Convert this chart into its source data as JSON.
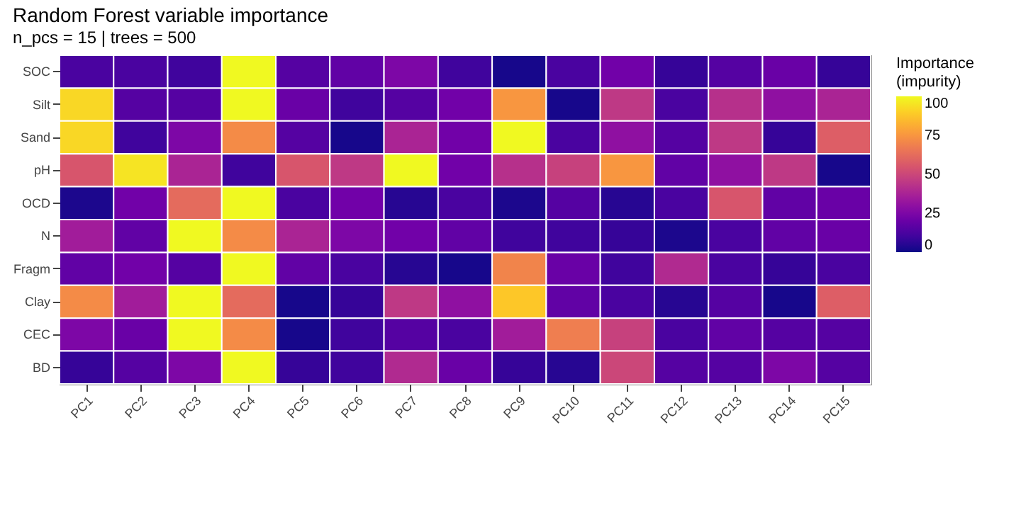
{
  "chart_data": {
    "type": "heatmap",
    "title": "Random Forest variable importance",
    "subtitle": "n_pcs = 15 | trees = 500",
    "clabel": "Importance\n(impurity)",
    "categories": [
      "PC1",
      "PC2",
      "PC3",
      "PC4",
      "PC5",
      "PC6",
      "PC7",
      "PC8",
      "PC9",
      "PC10",
      "PC11",
      "PC12",
      "PC13",
      "PC14",
      "PC15"
    ],
    "y_categories": [
      "SOC",
      "Silt",
      "Sand",
      "pH",
      "OCD",
      "N",
      "Fragm",
      "Clay",
      "CEC",
      "BD"
    ],
    "cells": [
      [
        12,
        12,
        10,
        100,
        15,
        18,
        25,
        10,
        2,
        12,
        22,
        8,
        15,
        20,
        8
      ],
      [
        92,
        15,
        15,
        100,
        20,
        10,
        15,
        22,
        75,
        2,
        45,
        12,
        42,
        30,
        38
      ],
      [
        92,
        10,
        25,
        72,
        15,
        2,
        38,
        22,
        100,
        12,
        30,
        15,
        45,
        8,
        58
      ],
      [
        55,
        95,
        38,
        10,
        55,
        45,
        100,
        22,
        42,
        48,
        75,
        18,
        30,
        45,
        2
      ],
      [
        3,
        22,
        62,
        100,
        12,
        22,
        5,
        12,
        3,
        15,
        5,
        12,
        55,
        18,
        20
      ],
      [
        35,
        18,
        100,
        72,
        38,
        25,
        22,
        18,
        10,
        10,
        8,
        3,
        12,
        18,
        20
      ],
      [
        18,
        22,
        15,
        100,
        18,
        12,
        5,
        2,
        70,
        20,
        10,
        40,
        12,
        8,
        12
      ],
      [
        72,
        35,
        100,
        62,
        2,
        8,
        45,
        30,
        88,
        18,
        12,
        5,
        15,
        2,
        58
      ],
      [
        25,
        20,
        100,
        72,
        2,
        10,
        15,
        12,
        35,
        68,
        48,
        12,
        18,
        15,
        15
      ],
      [
        8,
        15,
        25,
        100,
        8,
        10,
        40,
        20,
        8,
        5,
        50,
        15,
        15,
        25,
        15
      ]
    ],
    "clim": [
      0,
      100
    ],
    "cticks": [
      0,
      25,
      50,
      75,
      100
    ]
  }
}
